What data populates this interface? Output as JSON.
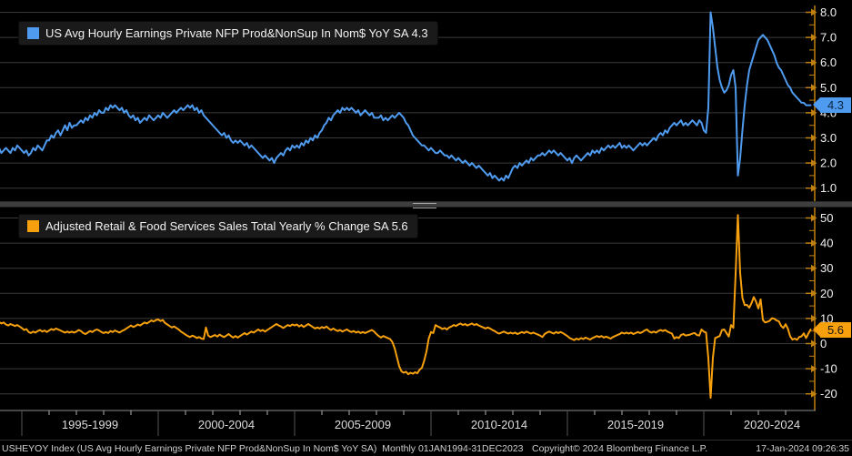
{
  "colors": {
    "background": "#000000",
    "grid": "#3a3a3a",
    "axis_amber": "#c18110",
    "tick_label": "#f0f0f0",
    "line_blue": "#4f9bef",
    "line_orange": "#f7a00e"
  },
  "panels": {
    "top": {
      "legend_label": "US Avg Hourly Earnings Private NFP Prod&NonSup In Nom$ YoY SA 4.3",
      "last_value_label": "4.3"
    },
    "bottom": {
      "legend_label": "Adjusted Retail & Food Services Sales Total Yearly % Change SA 5.6",
      "last_value_label": "5.6"
    }
  },
  "x_axis": {
    "labels": [
      "1995-1999",
      "2000-2004",
      "2005-2009",
      "2010-2014",
      "2015-2019",
      "2020-2024"
    ]
  },
  "status_bar": {
    "left": "USHEYOY Index (US Avg Hourly Earnings Private NFP Prod&NonSup In Nom$ YoY SA)  Monthly 01JAN1994-31DEC2023",
    "center": "Copyright© 2024 Bloomberg Finance L.P.",
    "right": "17-Jan-2024 09:26:35"
  },
  "chart_data": [
    {
      "type": "line",
      "title": "US Avg Hourly Earnings Private NFP Prod&NonSup In Nom$ YoY SA",
      "color": "#4f9bef",
      "frequency": "monthly",
      "x_start": "Jan 1994",
      "x_end": "Dec 2023",
      "last_value": 4.3,
      "ylim": [
        0.7,
        8.3
      ],
      "y_ticks": [
        8,
        7,
        6,
        5,
        4,
        3,
        2,
        1
      ],
      "y_tick_labels": [
        "8.0",
        "7.0",
        "6.0",
        "5.0",
        "4.0",
        "3.0",
        "2.0",
        "1.0"
      ],
      "values": [
        2.7,
        2.5,
        2.6,
        2.4,
        2.5,
        2.6,
        2.5,
        2.4,
        2.6,
        2.5,
        2.7,
        2.6,
        2.5,
        2.4,
        2.5,
        2.3,
        2.4,
        2.6,
        2.5,
        2.7,
        2.6,
        2.5,
        2.7,
        2.9,
        2.9,
        3.1,
        3.0,
        3.2,
        3.3,
        3.1,
        3.3,
        3.5,
        3.3,
        3.6,
        3.4,
        3.5,
        3.5,
        3.6,
        3.7,
        3.6,
        3.8,
        3.7,
        3.9,
        3.8,
        4.0,
        3.9,
        4.1,
        4.0,
        4.0,
        4.2,
        4.1,
        4.3,
        4.2,
        4.3,
        4.2,
        4.1,
        4.2,
        4.0,
        4.1,
        3.9,
        3.8,
        3.9,
        3.7,
        3.8,
        3.6,
        3.7,
        3.8,
        3.7,
        3.9,
        3.8,
        3.7,
        3.8,
        3.9,
        3.8,
        4.0,
        3.9,
        3.8,
        3.9,
        4.0,
        4.1,
        4.0,
        4.1,
        4.2,
        4.1,
        4.2,
        4.3,
        4.2,
        4.3,
        4.1,
        4.2,
        4.0,
        4.1,
        3.9,
        3.8,
        3.7,
        3.6,
        3.5,
        3.4,
        3.3,
        3.2,
        3.1,
        3.2,
        3.0,
        3.1,
        2.9,
        2.8,
        2.9,
        2.8,
        2.9,
        2.8,
        2.7,
        2.8,
        2.6,
        2.7,
        2.6,
        2.5,
        2.4,
        2.3,
        2.2,
        2.3,
        2.2,
        2.1,
        2.2,
        2.0,
        2.2,
        2.3,
        2.4,
        2.3,
        2.5,
        2.6,
        2.5,
        2.7,
        2.6,
        2.7,
        2.6,
        2.8,
        2.7,
        2.9,
        2.8,
        3.0,
        2.9,
        3.1,
        3.0,
        3.2,
        3.3,
        3.5,
        3.6,
        3.8,
        3.7,
        3.9,
        4.0,
        4.1,
        4.0,
        4.2,
        4.1,
        4.2,
        4.1,
        4.2,
        4.1,
        4.0,
        4.1,
        3.9,
        4.0,
        4.1,
        4.0,
        3.9,
        4.0,
        3.8,
        3.8,
        3.8,
        3.9,
        3.7,
        3.8,
        3.7,
        3.8,
        3.9,
        3.8,
        3.9,
        4.0,
        3.9,
        3.8,
        3.6,
        3.5,
        3.3,
        3.1,
        3.0,
        2.9,
        2.8,
        2.7,
        2.7,
        2.6,
        2.5,
        2.6,
        2.5,
        2.4,
        2.4,
        2.5,
        2.4,
        2.3,
        2.3,
        2.2,
        2.3,
        2.2,
        2.1,
        2.2,
        2.1,
        2.0,
        2.1,
        2.0,
        1.9,
        2.0,
        1.9,
        1.8,
        1.9,
        1.8,
        1.7,
        1.6,
        1.5,
        1.6,
        1.4,
        1.5,
        1.4,
        1.3,
        1.4,
        1.3,
        1.5,
        1.4,
        1.6,
        1.8,
        1.9,
        1.8,
        2.0,
        1.9,
        2.0,
        2.1,
        2.0,
        2.2,
        2.1,
        2.2,
        2.3,
        2.3,
        2.4,
        2.3,
        2.4,
        2.5,
        2.4,
        2.5,
        2.4,
        2.3,
        2.4,
        2.3,
        2.2,
        2.1,
        2.2,
        2.0,
        2.2,
        2.3,
        2.2,
        2.1,
        2.2,
        2.3,
        2.4,
        2.3,
        2.5,
        2.4,
        2.5,
        2.4,
        2.6,
        2.5,
        2.6,
        2.7,
        2.6,
        2.7,
        2.6,
        2.7,
        2.8,
        2.6,
        2.7,
        2.6,
        2.7,
        2.6,
        2.5,
        2.6,
        2.7,
        2.8,
        2.7,
        2.8,
        2.7,
        2.8,
        2.9,
        3.0,
        2.9,
        3.1,
        3.2,
        3.1,
        3.3,
        3.2,
        3.4,
        3.5,
        3.6,
        3.5,
        3.6,
        3.7,
        3.5,
        3.6,
        3.5,
        3.6,
        3.7,
        3.6,
        3.5,
        3.7,
        3.6,
        3.3,
        3.2,
        4.2,
        8.0,
        7.4,
        6.6,
        5.8,
        5.3,
        5.0,
        4.8,
        4.9,
        5.1,
        5.5,
        5.7,
        5.0,
        1.5,
        2.2,
        3.3,
        4.3,
        5.1,
        5.7,
        6.0,
        6.3,
        6.6,
        6.9,
        7.0,
        7.1,
        7.0,
        6.9,
        6.7,
        6.5,
        6.3,
        6.0,
        5.8,
        5.7,
        5.5,
        5.3,
        5.1,
        5.0,
        4.8,
        4.7,
        4.6,
        4.5,
        4.4,
        4.4,
        4.3,
        4.3,
        4.3
      ]
    },
    {
      "type": "line",
      "title": "Adjusted Retail & Food Services Sales Total Yearly % Change SA",
      "color": "#f7a00e",
      "frequency": "monthly",
      "x_start": "Jan 1994",
      "x_end": "Dec 2023",
      "last_value": 5.6,
      "ylim": [
        -24,
        53
      ],
      "y_ticks": [
        50,
        40,
        30,
        20,
        10,
        0,
        -10,
        -20
      ],
      "y_tick_labels": [
        "50",
        "40",
        "30",
        "20",
        "10",
        "0",
        "-10",
        "-20"
      ],
      "values": [
        9.2,
        9.8,
        8.6,
        8.0,
        8.4,
        7.6,
        7.2,
        7.8,
        7.4,
        7.0,
        7.4,
        6.8,
        6.2,
        5.4,
        5.8,
        4.6,
        4.2,
        4.8,
        4.4,
        5.0,
        5.4,
        4.8,
        5.2,
        4.6,
        5.2,
        5.8,
        5.4,
        6.0,
        5.6,
        5.2,
        4.8,
        4.4,
        4.8,
        4.4,
        4.8,
        4.4,
        4.8,
        5.4,
        5.0,
        4.2,
        3.8,
        4.4,
        5.0,
        4.6,
        5.2,
        5.6,
        5.2,
        4.6,
        4.2,
        4.6,
        4.2,
        5.0,
        4.6,
        5.2,
        4.8,
        4.4,
        5.0,
        5.4,
        6.0,
        6.6,
        7.2,
        6.6,
        7.0,
        7.6,
        7.2,
        7.8,
        8.4,
        8.0,
        8.6,
        9.2,
        8.8,
        9.4,
        9.6,
        9.0,
        9.4,
        8.2,
        7.6,
        7.0,
        6.4,
        6.8,
        6.2,
        5.6,
        4.8,
        4.2,
        3.6,
        3.0,
        2.6,
        3.2,
        2.8,
        2.2,
        2.6,
        2.0,
        1.8,
        6.4,
        3.2,
        2.6,
        3.0,
        3.4,
        2.8,
        3.6,
        3.0,
        2.6,
        3.2,
        3.8,
        3.0,
        2.4,
        3.0,
        2.4,
        3.0,
        3.6,
        4.2,
        3.6,
        4.2,
        4.8,
        4.4,
        5.0,
        5.6,
        5.0,
        5.4,
        4.8,
        5.4,
        6.0,
        6.6,
        7.2,
        7.8,
        7.2,
        6.8,
        6.2,
        6.8,
        7.4,
        7.0,
        7.6,
        7.2,
        7.6,
        6.8,
        7.4,
        6.6,
        7.2,
        7.8,
        7.2,
        6.6,
        6.0,
        6.4,
        6.0,
        6.6,
        6.2,
        6.8,
        6.0,
        5.4,
        6.0,
        5.4,
        5.0,
        5.4,
        4.8,
        5.2,
        5.6,
        5.0,
        4.6,
        5.0,
        4.4,
        4.8,
        4.2,
        4.6,
        4.2,
        4.6,
        5.0,
        5.4,
        4.8,
        3.8,
        3.0,
        2.4,
        3.0,
        2.6,
        2.2,
        1.8,
        0.6,
        -1.8,
        -5.4,
        -9.0,
        -11.0,
        -11.6,
        -11.2,
        -12.2,
        -11.6,
        -12.0,
        -11.4,
        -11.8,
        -10.4,
        -9.6,
        -6.8,
        -3.2,
        2.0,
        4.6,
        4.2,
        7.4,
        6.8,
        6.4,
        5.8,
        6.2,
        5.6,
        6.4,
        6.8,
        7.4,
        7.0,
        7.6,
        8.0,
        7.4,
        7.8,
        7.2,
        7.6,
        8.0,
        7.4,
        7.8,
        7.2,
        6.8,
        6.4,
        6.0,
        6.4,
        6.0,
        5.4,
        5.0,
        4.4,
        4.0,
        4.4,
        4.8,
        4.4,
        4.0,
        4.4,
        4.0,
        4.4,
        3.8,
        4.2,
        4.6,
        4.2,
        4.8,
        4.4,
        4.0,
        4.4,
        4.0,
        3.6,
        3.2,
        2.6,
        3.8,
        4.4,
        4.8,
        4.4,
        4.0,
        4.6,
        4.2,
        4.6,
        4.2,
        3.6,
        3.0,
        2.2,
        1.8,
        1.4,
        2.0,
        1.6,
        2.2,
        1.8,
        2.4,
        2.0,
        1.6,
        2.2,
        2.6,
        3.0,
        2.6,
        3.0,
        2.4,
        2.8,
        2.4,
        2.0,
        2.6,
        3.0,
        3.4,
        3.8,
        4.4,
        4.0,
        4.4,
        4.0,
        4.4,
        3.8,
        4.2,
        4.6,
        4.2,
        4.6,
        5.2,
        5.6,
        4.8,
        4.4,
        4.8,
        4.4,
        5.0,
        5.4,
        5.0,
        5.4,
        4.8,
        4.4,
        4.0,
        2.0,
        2.6,
        2.2,
        3.4,
        3.8,
        3.2,
        3.4,
        3.6,
        4.0,
        4.2,
        3.4,
        3.2,
        5.6,
        4.8,
        4.4,
        -5.8,
        -21.6,
        -5.6,
        2.2,
        2.6,
        3.0,
        5.4,
        5.6,
        4.2,
        2.8,
        7.4,
        6.3,
        27.7,
        51.2,
        28.1,
        18.2,
        15.3,
        15.4,
        14.3,
        16.1,
        18.5,
        16.7,
        14.0,
        17.6,
        9.4,
        8.4,
        8.7,
        9.1,
        10.1,
        9.9,
        9.2,
        8.9,
        7.1,
        6.2,
        7.7,
        5.9,
        2.9,
        1.6,
        2.0,
        1.5,
        2.6,
        2.9,
        4.1,
        2.2,
        4.0,
        5.6
      ]
    }
  ]
}
